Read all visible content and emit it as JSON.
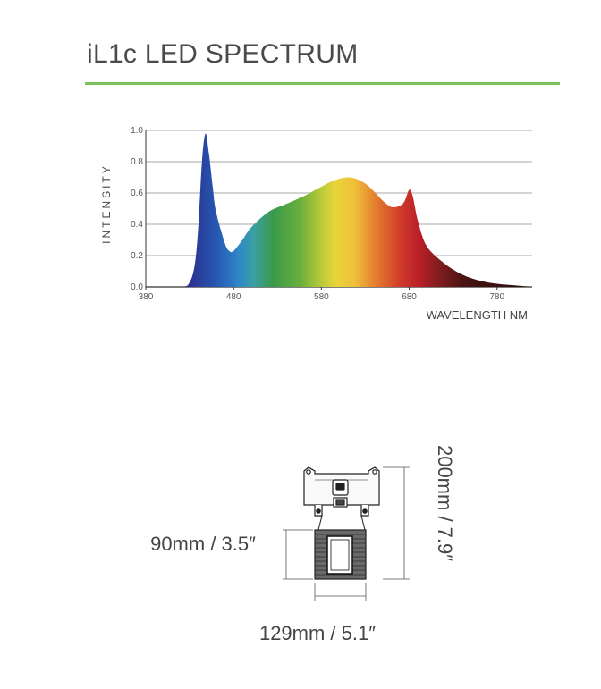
{
  "header": {
    "title": "iL1c LED SPECTRUM",
    "accent": "#7cc05a"
  },
  "chart_data": {
    "type": "area",
    "xlabel": "WAVELENGTH NM",
    "ylabel": "INTENSITY",
    "xlim": [
      380,
      820
    ],
    "ylim": [
      0,
      1
    ],
    "xticks": [
      380,
      480,
      580,
      680,
      780
    ],
    "xtick_labels": [
      "380",
      "480",
      "580",
      "680",
      "780"
    ],
    "yticks": [
      0,
      0.2,
      0.4,
      0.6,
      0.8,
      1.0
    ],
    "ytick_labels": [
      "0.0",
      "0.2",
      "0.4",
      "0.6",
      "0.8",
      "1.0"
    ],
    "grid": true,
    "fill": "visible-spectrum gradient",
    "x": [
      380,
      420,
      430,
      436,
      440,
      444,
      448,
      452,
      456,
      460,
      470,
      475,
      480,
      490,
      500,
      520,
      540,
      560,
      580,
      590,
      600,
      610,
      620,
      630,
      640,
      650,
      660,
      670,
      675,
      680,
      684,
      690,
      700,
      720,
      740,
      760,
      780,
      800,
      820
    ],
    "values": [
      0.0,
      0.0,
      0.03,
      0.15,
      0.4,
      0.8,
      0.98,
      0.85,
      0.65,
      0.48,
      0.28,
      0.23,
      0.23,
      0.3,
      0.38,
      0.48,
      0.53,
      0.58,
      0.64,
      0.67,
      0.69,
      0.7,
      0.69,
      0.66,
      0.61,
      0.55,
      0.51,
      0.52,
      0.55,
      0.62,
      0.58,
      0.42,
      0.26,
      0.15,
      0.08,
      0.04,
      0.02,
      0.01,
      0.0
    ]
  },
  "dimensions": {
    "height_label": "200mm / 7.9″",
    "width_label": "90mm / 3.5″",
    "length_label": "129mm / 5.1″"
  },
  "icons": {
    "fixture": "led-fixture-drawing-icon",
    "power": "power-socket-icon"
  }
}
